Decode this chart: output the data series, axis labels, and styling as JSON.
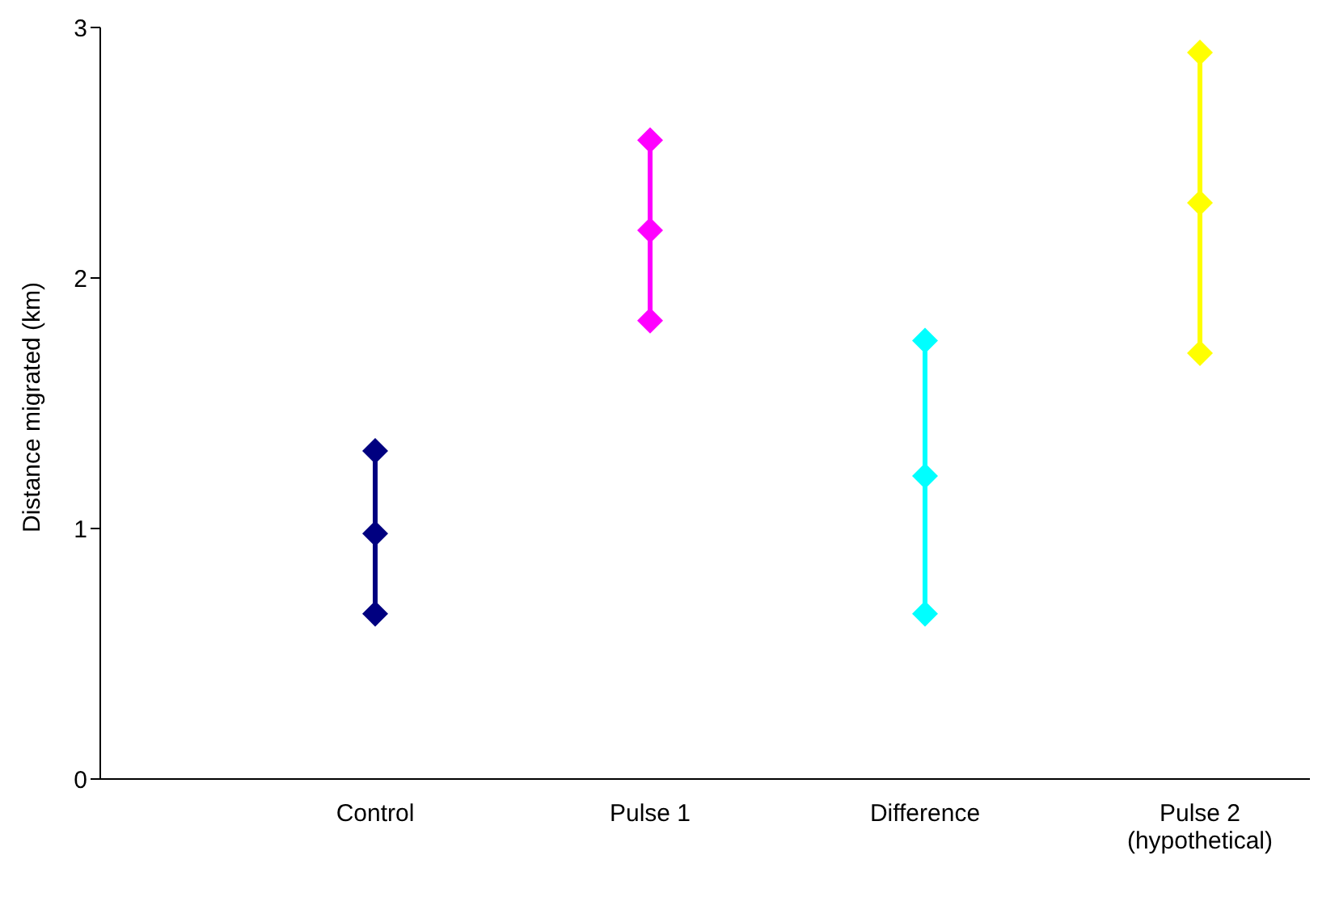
{
  "chart_data": {
    "type": "line",
    "ylabel": "Distance migrated (km)",
    "categories": [
      "Control",
      "Pulse 1",
      "Difference",
      "Pulse 2\n(hypothetical)"
    ],
    "series": [
      {
        "color": "#000080",
        "x": [
          "Control",
          "Control",
          "Control"
        ],
        "values": [
          0.66,
          0.98,
          1.31
        ]
      },
      {
        "color": "#ff00ff",
        "x": [
          "Pulse 1",
          "Pulse 1",
          "Pulse 1"
        ],
        "values": [
          1.83,
          2.19,
          2.55
        ]
      },
      {
        "color": "#00ffff",
        "x": [
          "Difference",
          "Difference",
          "Difference"
        ],
        "values": [
          0.66,
          1.21,
          1.75
        ]
      },
      {
        "color": "#ffff00",
        "x": [
          "Pulse 2\n(hypothetical)",
          "Pulse 2\n(hypothetical)",
          "Pulse 2\n(hypothetical)"
        ],
        "values": [
          1.7,
          2.3,
          2.9
        ]
      }
    ],
    "marker": "diamond",
    "line_style": "solid",
    "ylim": [
      0,
      3
    ],
    "yticks": [
      0,
      1,
      2,
      3
    ],
    "grid": false,
    "legend": false
  }
}
